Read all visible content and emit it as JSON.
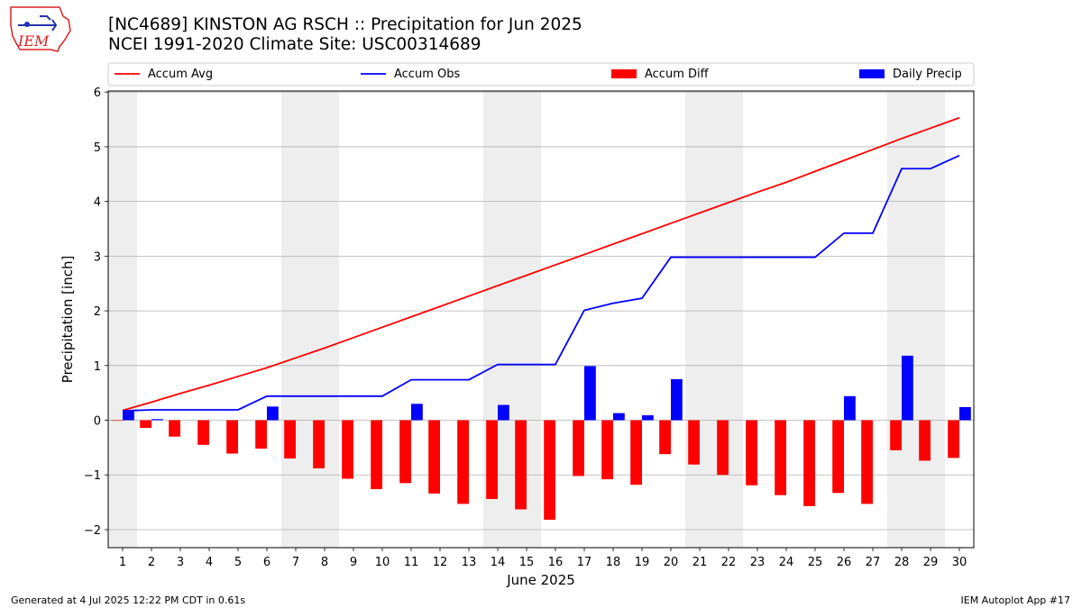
{
  "header": {
    "title_line1": "[NC4689] KINSTON AG RSCH :: Precipitation for Jun 2025",
    "title_line2": "NCEI 1991-2020 Climate Site: USC00314689",
    "logo_text": "IEM"
  },
  "footer": {
    "generated": "Generated at 4 Jul 2025 12:22 PM CDT in 0.61s",
    "app": "IEM Autoplot App #17"
  },
  "chart_data": {
    "type": "bar",
    "title": "[NC4689] KINSTON AG RSCH :: Precipitation for Jun 2025",
    "subtitle": "NCEI 1991-2020 Climate Site: USC00314689",
    "xlabel": "June 2025",
    "ylabel": "Precipitation [inch]",
    "x": [
      1,
      2,
      3,
      4,
      5,
      6,
      7,
      8,
      9,
      10,
      11,
      12,
      13,
      14,
      15,
      16,
      17,
      18,
      19,
      20,
      21,
      22,
      23,
      24,
      25,
      26,
      27,
      28,
      29,
      30
    ],
    "ylim": [
      -2.33,
      6.02
    ],
    "yticks": [
      -2,
      -1,
      0,
      1,
      2,
      3,
      4,
      5,
      6
    ],
    "ytick_labels": [
      "−2",
      "−1",
      "0",
      "1",
      "2",
      "3",
      "4",
      "5",
      "6"
    ],
    "grid": "horizontal",
    "weekend_shading": [
      [
        1,
        1
      ],
      [
        7,
        8
      ],
      [
        14,
        15
      ],
      [
        21,
        22
      ],
      [
        28,
        29
      ]
    ],
    "legend": {
      "placement": "top",
      "columns": 4
    },
    "series": [
      {
        "name": "Accum Avg",
        "type": "line",
        "color": "#ff0000",
        "values": [
          0.18,
          0.33,
          0.49,
          0.64,
          0.8,
          0.96,
          1.14,
          1.32,
          1.51,
          1.7,
          1.89,
          2.08,
          2.27,
          2.46,
          2.65,
          2.84,
          3.03,
          3.22,
          3.41,
          3.6,
          3.79,
          3.98,
          4.17,
          4.35,
          4.55,
          4.75,
          4.95,
          5.15,
          5.34,
          5.53
        ]
      },
      {
        "name": "Accum Obs",
        "type": "line",
        "color": "#0000ff",
        "values": [
          0.17,
          0.19,
          0.19,
          0.19,
          0.19,
          0.44,
          0.44,
          0.44,
          0.44,
          0.44,
          0.74,
          0.74,
          0.74,
          1.02,
          1.02,
          1.02,
          2.01,
          2.14,
          2.23,
          2.98,
          2.98,
          2.98,
          2.98,
          2.98,
          2.98,
          3.42,
          3.42,
          4.6,
          4.6,
          4.84
        ]
      },
      {
        "name": "Accum Diff",
        "type": "bar",
        "color": "#ff0000",
        "values": [
          -0.01,
          -0.14,
          -0.3,
          -0.45,
          -0.61,
          -0.52,
          -0.7,
          -0.88,
          -1.07,
          -1.26,
          -1.15,
          -1.34,
          -1.53,
          -1.44,
          -1.63,
          -1.82,
          -1.02,
          -1.08,
          -1.18,
          -0.62,
          -0.81,
          -1.0,
          -1.19,
          -1.37,
          -1.57,
          -1.33,
          -1.53,
          -0.55,
          -0.74,
          -0.69
        ]
      },
      {
        "name": "Daily Precip",
        "type": "bar",
        "color": "#0000ff",
        "values": [
          0.17,
          0.02,
          0.0,
          0.0,
          0.0,
          0.25,
          0.0,
          0.0,
          0.0,
          0.0,
          0.3,
          0.0,
          0.0,
          0.28,
          0.0,
          0.0,
          0.99,
          0.13,
          0.09,
          0.75,
          0.0,
          0.0,
          0.0,
          0.0,
          0.0,
          0.44,
          0.0,
          1.18,
          0.0,
          0.24
        ]
      }
    ]
  }
}
